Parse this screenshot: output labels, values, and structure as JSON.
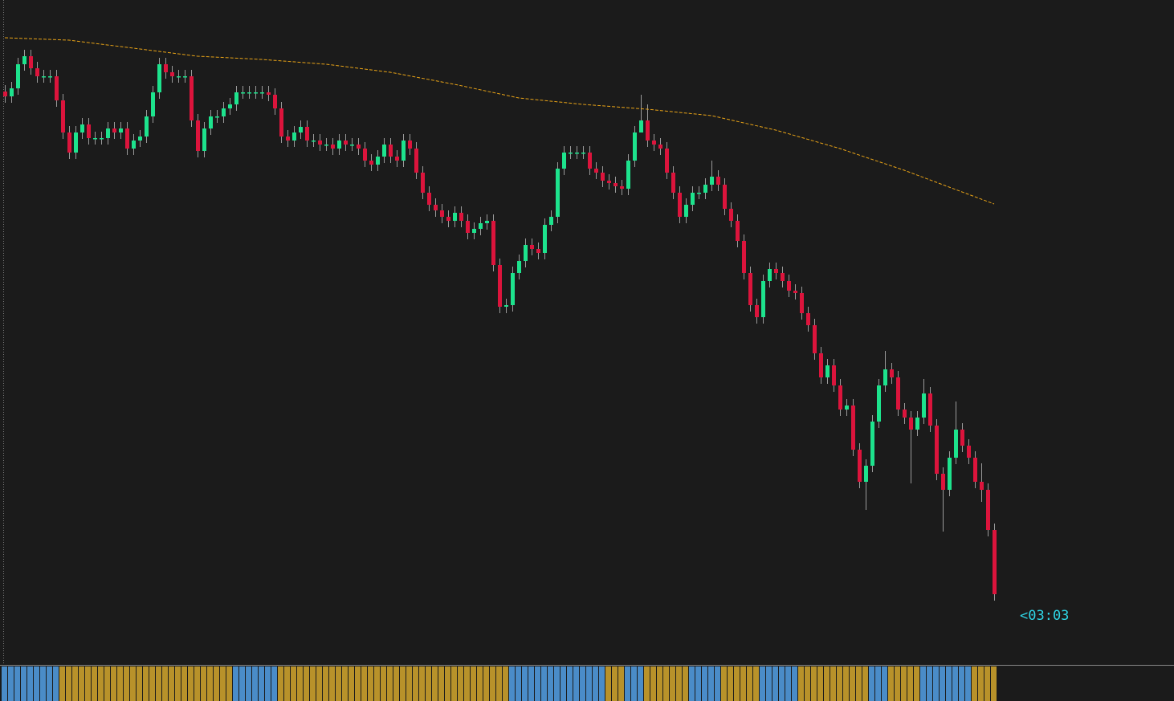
{
  "chart_data": {
    "type": "candlestick",
    "up_color": "#1de38d",
    "down_color": "#dc143c",
    "ylim": [
      0,
      830
    ],
    "open": [
      716,
      710,
      720,
      750,
      760,
      745,
      735,
      735,
      735,
      705,
      665,
      640,
      665,
      675,
      658,
      658,
      658,
      670,
      665,
      670,
      645,
      655,
      660,
      685,
      715,
      750,
      740,
      735,
      735,
      735,
      680,
      642,
      670,
      685,
      685,
      695,
      700,
      715,
      715,
      715,
      715,
      715,
      712,
      695,
      660,
      655,
      665,
      672,
      655,
      655,
      650,
      650,
      645,
      655,
      650,
      650,
      645,
      630,
      625,
      635,
      650,
      635,
      630,
      655,
      645,
      615,
      590,
      575,
      568,
      560,
      555,
      565,
      555,
      540,
      545,
      552,
      555,
      500,
      448,
      450,
      490,
      505,
      525,
      520,
      515,
      550,
      560,
      620,
      640,
      640,
      640,
      640,
      620,
      615,
      605,
      602,
      598,
      595,
      630,
      665,
      680,
      655,
      650,
      645,
      615,
      590,
      560,
      575,
      590,
      590,
      600,
      610,
      600,
      570,
      555,
      530,
      490,
      450,
      435,
      480,
      495,
      490,
      480,
      468,
      465,
      440,
      425,
      390,
      360,
      375,
      350,
      320,
      325,
      270,
      230,
      250,
      305,
      350,
      370,
      360,
      320,
      310,
      295,
      310,
      340,
      300,
      240,
      220,
      260,
      295,
      275,
      260,
      230,
      220,
      170
    ],
    "high": [
      724,
      728,
      758,
      768,
      768,
      753,
      743,
      743,
      743,
      713,
      673,
      673,
      683,
      683,
      666,
      666,
      678,
      678,
      678,
      678,
      663,
      668,
      693,
      723,
      758,
      758,
      748,
      743,
      743,
      743,
      688,
      678,
      693,
      693,
      703,
      708,
      723,
      723,
      723,
      723,
      723,
      723,
      720,
      703,
      668,
      673,
      680,
      680,
      663,
      663,
      658,
      658,
      663,
      663,
      658,
      658,
      653,
      638,
      643,
      658,
      658,
      643,
      663,
      663,
      653,
      623,
      598,
      583,
      576,
      568,
      573,
      573,
      563,
      553,
      560,
      563,
      563,
      508,
      458,
      498,
      513,
      533,
      533,
      528,
      558,
      568,
      628,
      648,
      648,
      648,
      648,
      648,
      628,
      623,
      613,
      610,
      606,
      638,
      673,
      712,
      700,
      663,
      658,
      653,
      623,
      598,
      583,
      598,
      598,
      608,
      630,
      618,
      608,
      578,
      563,
      538,
      498,
      458,
      488,
      503,
      503,
      498,
      488,
      476,
      473,
      448,
      433,
      398,
      383,
      383,
      358,
      333,
      333,
      278,
      258,
      313,
      358,
      393,
      378,
      368,
      328,
      318,
      318,
      358,
      348,
      308,
      248,
      268,
      330,
      303,
      283,
      268,
      253,
      228,
      178
    ],
    "low": [
      702,
      702,
      712,
      742,
      737,
      727,
      727,
      727,
      697,
      657,
      632,
      632,
      657,
      650,
      650,
      650,
      650,
      657,
      657,
      637,
      637,
      647,
      652,
      677,
      707,
      732,
      727,
      727,
      727,
      672,
      634,
      634,
      662,
      677,
      677,
      687,
      692,
      707,
      707,
      707,
      707,
      704,
      687,
      652,
      647,
      647,
      657,
      647,
      647,
      642,
      642,
      637,
      637,
      642,
      642,
      637,
      622,
      617,
      617,
      627,
      627,
      622,
      622,
      637,
      607,
      582,
      567,
      560,
      552,
      547,
      547,
      547,
      532,
      532,
      537,
      544,
      492,
      440,
      440,
      442,
      482,
      497,
      512,
      507,
      507,
      542,
      552,
      612,
      632,
      632,
      632,
      612,
      607,
      597,
      594,
      590,
      587,
      587,
      622,
      672,
      647,
      642,
      637,
      607,
      582,
      552,
      552,
      567,
      582,
      582,
      592,
      592,
      562,
      547,
      522,
      482,
      442,
      427,
      427,
      472,
      482,
      472,
      460,
      457,
      432,
      417,
      382,
      352,
      352,
      342,
      312,
      312,
      262,
      222,
      195,
      242,
      297,
      342,
      352,
      312,
      302,
      228,
      287,
      302,
      292,
      232,
      168,
      212,
      252,
      267,
      252,
      222,
      205,
      162,
      82
    ],
    "close": [
      710,
      720,
      750,
      760,
      745,
      735,
      735,
      735,
      705,
      665,
      640,
      665,
      675,
      658,
      658,
      658,
      670,
      665,
      670,
      645,
      655,
      660,
      685,
      715,
      750,
      740,
      735,
      735,
      735,
      680,
      642,
      670,
      685,
      685,
      695,
      700,
      715,
      715,
      715,
      715,
      715,
      712,
      695,
      660,
      655,
      665,
      672,
      655,
      655,
      650,
      650,
      645,
      655,
      650,
      650,
      645,
      630,
      625,
      635,
      650,
      635,
      630,
      655,
      645,
      615,
      590,
      575,
      568,
      560,
      555,
      565,
      555,
      540,
      545,
      552,
      555,
      500,
      448,
      450,
      490,
      505,
      525,
      520,
      515,
      550,
      560,
      620,
      640,
      640,
      640,
      640,
      620,
      615,
      605,
      602,
      598,
      595,
      630,
      665,
      680,
      655,
      650,
      645,
      615,
      590,
      560,
      575,
      590,
      590,
      600,
      610,
      600,
      570,
      555,
      530,
      490,
      450,
      435,
      480,
      495,
      490,
      480,
      468,
      465,
      440,
      425,
      390,
      360,
      375,
      350,
      320,
      325,
      270,
      230,
      250,
      305,
      350,
      370,
      360,
      320,
      310,
      295,
      310,
      340,
      300,
      240,
      220,
      260,
      295,
      275,
      260,
      230,
      220,
      170,
      90
    ],
    "ma": {
      "color": "#e8a317",
      "x": [
        0,
        10,
        20,
        30,
        40,
        50,
        60,
        70,
        80,
        90,
        100,
        110,
        120,
        130,
        140,
        150,
        154
      ],
      "values": [
        783,
        780,
        770,
        760,
        756,
        750,
        740,
        725,
        708,
        700,
        694,
        686,
        668,
        645,
        618,
        588,
        576
      ]
    },
    "strip": [
      {
        "color": "#4a8cc8",
        "bars": 9
      },
      {
        "color": "#b8922a",
        "bars": 27
      },
      {
        "color": "#4a8cc8",
        "bars": 7
      },
      {
        "color": "#b8922a",
        "bars": 36
      },
      {
        "color": "#4a8cc8",
        "bars": 15
      },
      {
        "color": "#b8922a",
        "bars": 3
      },
      {
        "color": "#4a8cc8",
        "bars": 3
      },
      {
        "color": "#b8922a",
        "bars": 7
      },
      {
        "color": "#4a8cc8",
        "bars": 5
      },
      {
        "color": "#b8922a",
        "bars": 6
      },
      {
        "color": "#4a8cc8",
        "bars": 6
      },
      {
        "color": "#b8922a",
        "bars": 11
      },
      {
        "color": "#4a8cc8",
        "bars": 3
      },
      {
        "color": "#b8922a",
        "bars": 5
      },
      {
        "color": "#4a8cc8",
        "bars": 8
      },
      {
        "color": "#b8922a",
        "bars": 4
      }
    ],
    "annotation": "<03:03"
  }
}
